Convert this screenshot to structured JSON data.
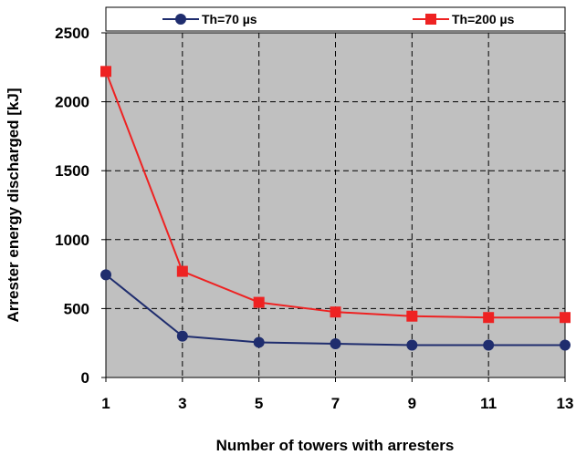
{
  "chart_data": {
    "type": "line",
    "x": [
      1,
      3,
      5,
      7,
      9,
      11,
      13
    ],
    "series": [
      {
        "name": "Th=70 µs",
        "values": [
          745,
          300,
          255,
          245,
          235,
          235,
          235
        ],
        "color": "#1f2d6e",
        "marker": "circle"
      },
      {
        "name": "Th=200 µs",
        "values": [
          2220,
          770,
          545,
          475,
          445,
          435,
          435
        ],
        "color": "#ee2222",
        "marker": "square"
      }
    ],
    "xlabel": "Number of towers with arresters",
    "ylabel": "Arrester energy discharged [kJ]",
    "xlim": [
      1,
      13
    ],
    "ylim": [
      0,
      2500
    ],
    "xticks": [
      "1",
      "3",
      "5",
      "7",
      "9",
      "11",
      "13"
    ],
    "yticks": [
      "0",
      "500",
      "1000",
      "1500",
      "2000",
      "2500"
    ],
    "grid": true,
    "legend_position": "top",
    "plot_background": "#c0c0c0"
  }
}
